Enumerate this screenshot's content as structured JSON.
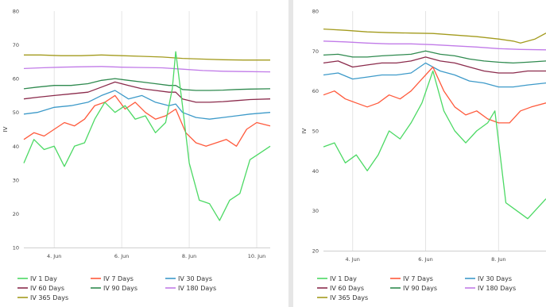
{
  "chart_data": [
    {
      "type": "line",
      "ylabel": "IV",
      "ylim": [
        10,
        80
      ],
      "yticks": [
        10,
        20,
        30,
        40,
        50,
        60,
        70,
        80
      ],
      "xlim": [
        3.1,
        10.4
      ],
      "xticks": [
        {
          "x": 4,
          "label": "4. Jun"
        },
        {
          "x": 6,
          "label": "6. Jun"
        },
        {
          "x": 8,
          "label": "8. Jun"
        },
        {
          "x": 10,
          "label": "10. Jun"
        }
      ],
      "grid": "vertical",
      "legend": "bottom",
      "series": [
        {
          "name": "IV 1 Day",
          "color": "#4cd964",
          "x": [
            3.1,
            3.4,
            3.7,
            4.0,
            4.3,
            4.6,
            4.9,
            5.2,
            5.5,
            5.8,
            6.1,
            6.4,
            6.7,
            7.0,
            7.3,
            7.5,
            7.6,
            7.8,
            8.0,
            8.3,
            8.6,
            8.9,
            9.2,
            9.5,
            9.8,
            10.1,
            10.4
          ],
          "y": [
            35,
            42,
            39,
            40,
            34,
            40,
            41,
            48,
            53,
            50,
            52,
            48,
            49,
            44,
            47,
            57,
            68,
            52,
            35,
            24,
            23,
            18,
            24,
            26,
            36,
            38,
            40
          ]
        },
        {
          "name": "IV 7 Days",
          "color": "#ff5a3c",
          "x": [
            3.1,
            3.4,
            3.7,
            4.0,
            4.3,
            4.6,
            4.9,
            5.2,
            5.5,
            5.8,
            6.1,
            6.4,
            6.7,
            7.0,
            7.3,
            7.6,
            7.9,
            8.2,
            8.5,
            8.8,
            9.1,
            9.4,
            9.7,
            10.0,
            10.4
          ],
          "y": [
            42,
            44,
            43,
            45,
            47,
            46,
            48,
            52,
            53,
            55,
            51,
            53,
            50,
            48,
            49,
            51,
            44,
            41,
            40,
            41,
            42,
            40,
            45,
            47,
            46
          ]
        },
        {
          "name": "IV 30 Days",
          "color": "#3d9ac9",
          "x": [
            3.1,
            3.5,
            4.0,
            4.5,
            5.0,
            5.4,
            5.8,
            6.2,
            6.6,
            7.0,
            7.4,
            7.6,
            7.8,
            8.2,
            8.6,
            9.0,
            9.4,
            9.8,
            10.4
          ],
          "y": [
            49.5,
            50,
            51.5,
            52,
            53,
            55,
            56.5,
            54,
            55,
            53,
            52,
            52.5,
            50,
            48.5,
            48,
            48.5,
            49,
            49.5,
            50
          ]
        },
        {
          "name": "IV 60 Days",
          "color": "#8b2b4c",
          "x": [
            3.1,
            3.5,
            4.0,
            4.5,
            5.0,
            5.4,
            5.8,
            6.2,
            6.6,
            7.0,
            7.4,
            7.6,
            7.8,
            8.2,
            8.6,
            9.0,
            9.4,
            9.8,
            10.4
          ],
          "y": [
            54,
            54.5,
            55,
            55.5,
            56,
            57.5,
            59,
            58,
            57,
            56.5,
            56,
            56,
            54,
            53,
            53,
            53.2,
            53.5,
            53.8,
            54
          ]
        },
        {
          "name": "IV 90 Days",
          "color": "#2f8a4f",
          "x": [
            3.1,
            3.5,
            4.0,
            4.5,
            5.0,
            5.4,
            5.8,
            6.2,
            6.6,
            7.0,
            7.4,
            7.6,
            7.8,
            8.2,
            8.6,
            9.0,
            9.4,
            9.8,
            10.4
          ],
          "y": [
            57,
            57.5,
            58,
            58,
            58.5,
            59.5,
            60,
            59.5,
            59,
            58.5,
            58,
            58,
            56.8,
            56.5,
            56.5,
            56.6,
            56.8,
            56.9,
            57
          ]
        },
        {
          "name": "IV 180 Days",
          "color": "#c17be8",
          "x": [
            3.1,
            3.6,
            4.2,
            4.8,
            5.4,
            6.0,
            6.6,
            7.2,
            7.8,
            8.4,
            9.0,
            9.6,
            10.4
          ],
          "y": [
            63,
            63.2,
            63.4,
            63.5,
            63.6,
            63.4,
            63.3,
            63.2,
            62.8,
            62.4,
            62.2,
            62.1,
            62
          ]
        },
        {
          "name": "IV 365 Days",
          "color": "#a39b1e",
          "x": [
            3.1,
            3.6,
            4.2,
            4.8,
            5.4,
            6.0,
            6.6,
            7.2,
            7.8,
            8.4,
            9.0,
            9.6,
            10.4
          ],
          "y": [
            67,
            67,
            66.8,
            66.8,
            67,
            66.8,
            66.6,
            66.4,
            66,
            65.8,
            65.6,
            65.5,
            65.5
          ]
        }
      ]
    },
    {
      "type": "line",
      "ylabel": "IV",
      "ylim": [
        20,
        80
      ],
      "yticks": [
        20,
        30,
        40,
        50,
        60,
        70,
        80
      ],
      "xlim": [
        3.2,
        9.3
      ],
      "xticks": [
        {
          "x": 4,
          "label": "4. Jun"
        },
        {
          "x": 6,
          "label": "6. Jun"
        },
        {
          "x": 8,
          "label": "8. Jun"
        }
      ],
      "grid": "vertical",
      "legend": "bottom",
      "series": [
        {
          "name": "IV 1 Day",
          "color": "#4cd964",
          "x": [
            3.2,
            3.5,
            3.8,
            4.1,
            4.4,
            4.7,
            5.0,
            5.3,
            5.6,
            5.9,
            6.2,
            6.5,
            6.8,
            7.1,
            7.4,
            7.7,
            7.9,
            8.2,
            8.5,
            8.8,
            9.1,
            9.3
          ],
          "y": [
            46,
            47,
            42,
            44,
            40,
            44,
            50,
            48,
            52,
            57,
            65,
            55,
            50,
            47,
            50,
            52,
            55,
            32,
            30,
            28,
            31,
            33
          ]
        },
        {
          "name": "IV 7 Days",
          "color": "#ff5a3c",
          "x": [
            3.2,
            3.5,
            3.8,
            4.1,
            4.4,
            4.7,
            5.0,
            5.3,
            5.6,
            5.9,
            6.2,
            6.5,
            6.8,
            7.1,
            7.4,
            7.7,
            8.0,
            8.3,
            8.6,
            8.9,
            9.3
          ],
          "y": [
            59,
            60,
            58,
            57,
            56,
            57,
            59,
            58,
            60,
            63,
            66,
            60,
            56,
            54,
            55,
            53,
            52,
            52,
            55,
            56,
            57
          ]
        },
        {
          "name": "IV 30 Days",
          "color": "#3d9ac9",
          "x": [
            3.2,
            3.6,
            4.0,
            4.4,
            4.8,
            5.2,
            5.6,
            6.0,
            6.4,
            6.8,
            7.2,
            7.6,
            8.0,
            8.4,
            8.8,
            9.3
          ],
          "y": [
            64,
            64.5,
            63,
            63.5,
            64,
            64,
            64.5,
            67,
            65,
            64,
            62.5,
            62,
            61,
            61,
            61.5,
            62
          ]
        },
        {
          "name": "IV 60 Days",
          "color": "#8b2b4c",
          "x": [
            3.2,
            3.6,
            4.0,
            4.4,
            4.8,
            5.2,
            5.6,
            6.0,
            6.4,
            6.8,
            7.2,
            7.6,
            8.0,
            8.4,
            8.8,
            9.3
          ],
          "y": [
            67,
            67.5,
            66,
            66.5,
            67,
            67,
            67.5,
            68.5,
            67.5,
            67,
            66,
            65,
            64.5,
            64.5,
            65,
            65
          ]
        },
        {
          "name": "IV 90 Days",
          "color": "#2f8a4f",
          "x": [
            3.2,
            3.6,
            4.0,
            4.4,
            4.8,
            5.2,
            5.6,
            6.0,
            6.4,
            6.8,
            7.2,
            7.6,
            8.0,
            8.4,
            8.8,
            9.3
          ],
          "y": [
            69,
            69.2,
            68.5,
            68.5,
            68.8,
            69,
            69.2,
            70,
            69.2,
            68.8,
            68,
            67.5,
            67.2,
            67,
            67.2,
            67.5
          ]
        },
        {
          "name": "IV 180 Days",
          "color": "#c17be8",
          "x": [
            3.2,
            3.8,
            4.4,
            5.0,
            5.6,
            6.2,
            6.8,
            7.4,
            8.0,
            8.6,
            9.3
          ],
          "y": [
            72.5,
            72.3,
            72,
            71.8,
            71.8,
            71.6,
            71.3,
            71,
            70.6,
            70.4,
            70.3
          ]
        },
        {
          "name": "IV 365 Days",
          "color": "#a39b1e",
          "x": [
            3.2,
            3.8,
            4.4,
            5.0,
            5.6,
            6.2,
            6.8,
            7.4,
            8.0,
            8.4,
            8.6,
            9.0,
            9.3
          ],
          "y": [
            75.5,
            75.2,
            74.8,
            74.6,
            74.5,
            74.4,
            74,
            73.6,
            73,
            72.5,
            72,
            73,
            74.5
          ]
        }
      ]
    }
  ]
}
